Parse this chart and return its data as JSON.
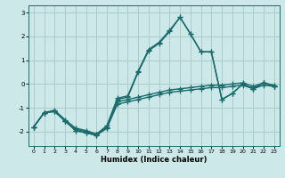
{
  "title": "",
  "xlabel": "Humidex (Indice chaleur)",
  "xlim": [
    -0.5,
    23.5
  ],
  "ylim": [
    -2.6,
    3.3
  ],
  "xticks": [
    0,
    1,
    2,
    3,
    4,
    5,
    6,
    7,
    8,
    9,
    10,
    11,
    12,
    13,
    14,
    15,
    16,
    17,
    18,
    19,
    20,
    21,
    22,
    23
  ],
  "yticks": [
    -2,
    -1,
    0,
    1,
    2,
    3
  ],
  "background_color": "#cce8e8",
  "grid_color": "#aacccc",
  "line_color": "#1a6b6b",
  "line_width": 1.0,
  "marker": "+",
  "marker_size": 4,
  "lines": [
    {
      "x": [
        0,
        1,
        2,
        3,
        4,
        5,
        6,
        7,
        8,
        9,
        10,
        11,
        12,
        13,
        14,
        15,
        16,
        17,
        18,
        19,
        20,
        21,
        22,
        23
      ],
      "y": [
        -1.8,
        -1.2,
        -1.15,
        -1.55,
        -1.95,
        -2.05,
        -2.15,
        -1.85,
        -0.85,
        -0.75,
        -0.65,
        -0.55,
        -0.45,
        -0.35,
        -0.3,
        -0.25,
        -0.2,
        -0.15,
        -0.15,
        -0.1,
        -0.05,
        -0.2,
        -0.05,
        -0.1
      ]
    },
    {
      "x": [
        0,
        1,
        2,
        3,
        4,
        5,
        6,
        7,
        8,
        9,
        10,
        11,
        12,
        13,
        14,
        15,
        16,
        17,
        18,
        19,
        20,
        21,
        22,
        23
      ],
      "y": [
        -1.8,
        -1.2,
        -1.15,
        -1.55,
        -1.95,
        -2.05,
        -2.15,
        -1.85,
        -0.75,
        -0.65,
        -0.55,
        -0.45,
        -0.35,
        -0.25,
        -0.2,
        -0.15,
        -0.1,
        -0.05,
        -0.05,
        0.0,
        0.05,
        -0.1,
        0.05,
        -0.05
      ]
    },
    {
      "x": [
        0,
        1,
        2,
        3,
        4,
        5,
        6,
        7,
        8,
        9,
        10,
        11,
        12,
        13,
        14,
        15,
        16,
        17,
        18,
        19,
        20,
        21,
        22,
        23
      ],
      "y": [
        -1.8,
        -1.2,
        -1.15,
        -1.55,
        -1.9,
        -2.0,
        -2.1,
        -1.8,
        -0.65,
        -0.55,
        0.5,
        1.4,
        1.7,
        2.2,
        2.8,
        2.1,
        1.35,
        1.35,
        -0.65,
        -0.4,
        0.0,
        -0.2,
        0.05,
        -0.1
      ]
    },
    {
      "x": [
        0,
        1,
        2,
        3,
        4,
        5,
        6,
        7,
        8,
        9,
        10,
        11,
        12,
        13,
        14,
        15,
        16,
        17,
        18,
        19,
        20,
        21,
        22,
        23
      ],
      "y": [
        -1.8,
        -1.2,
        -1.1,
        -1.5,
        -1.85,
        -1.95,
        -2.1,
        -1.75,
        -0.6,
        -0.5,
        0.55,
        1.45,
        1.75,
        2.25,
        2.8,
        2.1,
        1.35,
        1.35,
        -0.65,
        -0.4,
        0.0,
        -0.2,
        0.05,
        -0.1
      ]
    }
  ]
}
